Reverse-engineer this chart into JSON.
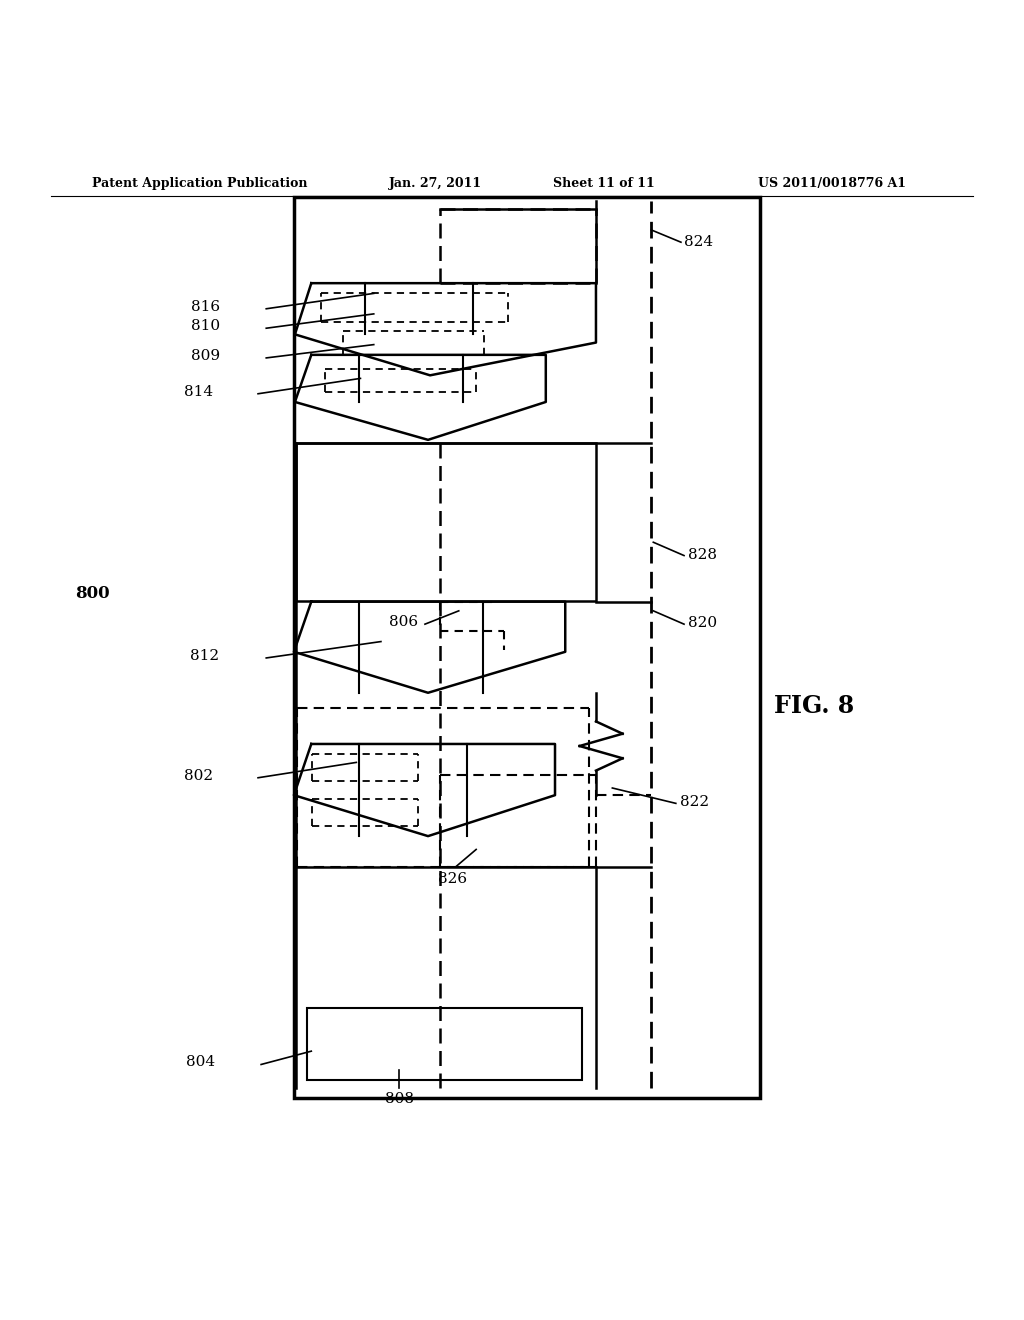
{
  "bg_color": "#ffffff",
  "header_text": "Patent Application Publication",
  "header_date": "Jan. 27, 2011",
  "header_sheet": "Sheet 11 of 11",
  "header_patent": "US 2011/0018776 A1",
  "fig_label": "FIG. 8",
  "main_label": "800"
}
